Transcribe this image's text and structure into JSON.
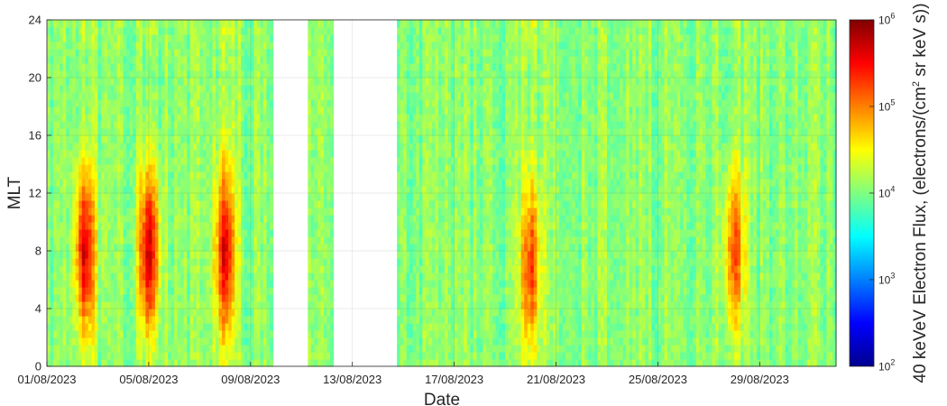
{
  "chart_data": {
    "type": "heatmap",
    "xlabel": "Date",
    "ylabel": "MLT",
    "colorbar_label_main": "40 keVeV Electron Flux, (electrons/(cm",
    "colorbar_label_sup": "2",
    "colorbar_label_end": " sr keV s))",
    "x_range_days": [
      "01/08/2023",
      "01/09/2023"
    ],
    "xticks": [
      "01/08/2023",
      "05/08/2023",
      "09/08/2023",
      "13/08/2023",
      "17/08/2023",
      "21/08/2023",
      "25/08/2023",
      "29/08/2023"
    ],
    "ylim": [
      0,
      24
    ],
    "yticks": [
      "0",
      "4",
      "8",
      "12",
      "16",
      "20",
      "24"
    ],
    "color_scale": "log",
    "clim": [
      100,
      1000000
    ],
    "colorbar_ticks": [
      {
        "base": "10",
        "exp": "2"
      },
      {
        "base": "10",
        "exp": "3"
      },
      {
        "base": "10",
        "exp": "4"
      },
      {
        "base": "10",
        "exp": "5"
      },
      {
        "base": "10",
        "exp": "6"
      }
    ],
    "colormap": "jet",
    "grid": true,
    "data_gaps": [
      [
        "09/08/2023 21:00",
        "11/08/2023 06:00"
      ],
      [
        "12/08/2023 06:00",
        "14/08/2023 18:00"
      ]
    ],
    "enhancement_peaks_log10_flux": [
      {
        "date": "02/08/2023 12:00",
        "mlt_center": 8,
        "peak": 5.6
      },
      {
        "date": "05/08/2023 00:00",
        "mlt_center": 8,
        "peak": 5.7
      },
      {
        "date": "08/08/2023 00:00",
        "mlt_center": 8,
        "peak": 5.5
      },
      {
        "date": "20/08/2023 00:00",
        "mlt_center": 7,
        "peak": 5.2
      },
      {
        "date": "28/08/2023 00:00",
        "mlt_center": 8,
        "peak": 5.2
      }
    ]
  }
}
